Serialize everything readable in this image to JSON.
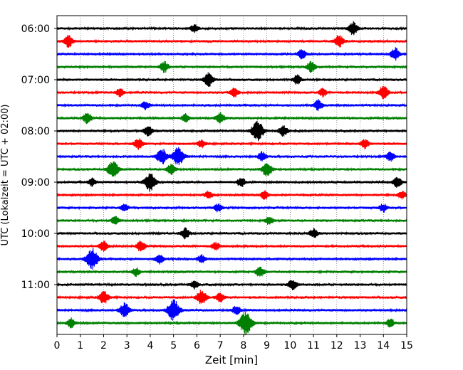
{
  "chart_data": {
    "type": "line",
    "title": "",
    "xlabel": "Zeit  [min]",
    "ylabel": "UTC (Lokalzeit = UTC + 02:00)",
    "xlim": [
      0,
      15
    ],
    "x_ticks": [
      0,
      1,
      2,
      3,
      4,
      5,
      6,
      7,
      8,
      9,
      10,
      11,
      12,
      13,
      14,
      15
    ],
    "y_tick_labels": [
      "06:00",
      "07:00",
      "08:00",
      "09:00",
      "10:00",
      "11:00"
    ],
    "grid": "vertical dotted lines at each minute",
    "trace_interval_minutes": 15,
    "trace_colors": [
      "#000000",
      "#ff0000",
      "#0000ff",
      "#008000"
    ],
    "traces": [
      {
        "start": "06:00",
        "color": "#000000",
        "events": [
          [
            5.9,
            0.6
          ],
          [
            12.7,
            1.0
          ]
        ]
      },
      {
        "start": "06:15",
        "color": "#ff0000",
        "events": [
          [
            0.5,
            0.9
          ],
          [
            12.1,
            0.9
          ]
        ]
      },
      {
        "start": "06:30",
        "color": "#0000ff",
        "events": [
          [
            10.5,
            0.7
          ],
          [
            14.5,
            0.9
          ]
        ]
      },
      {
        "start": "06:45",
        "color": "#008000",
        "events": [
          [
            4.6,
            0.8
          ],
          [
            10.9,
            0.8
          ]
        ]
      },
      {
        "start": "07:00",
        "color": "#000000",
        "events": [
          [
            6.5,
            1.0
          ],
          [
            10.3,
            0.7
          ]
        ]
      },
      {
        "start": "07:15",
        "color": "#ff0000",
        "events": [
          [
            2.7,
            0.6
          ],
          [
            7.6,
            0.7
          ],
          [
            11.4,
            0.6
          ],
          [
            14.0,
            1.0
          ]
        ]
      },
      {
        "start": "07:30",
        "color": "#0000ff",
        "events": [
          [
            3.8,
            0.6
          ],
          [
            11.2,
            0.8
          ]
        ]
      },
      {
        "start": "07:45",
        "color": "#008000",
        "events": [
          [
            1.3,
            0.8
          ],
          [
            5.5,
            0.6
          ],
          [
            7.0,
            0.8
          ]
        ]
      },
      {
        "start": "08:00",
        "color": "#000000",
        "events": [
          [
            3.9,
            0.8
          ],
          [
            8.6,
            1.5
          ],
          [
            9.7,
            0.8
          ]
        ]
      },
      {
        "start": "08:15",
        "color": "#ff0000",
        "events": [
          [
            3.5,
            0.8
          ],
          [
            6.2,
            0.6
          ],
          [
            13.2,
            0.7
          ]
        ]
      },
      {
        "start": "08:30",
        "color": "#0000ff",
        "events": [
          [
            4.5,
            1.2
          ],
          [
            5.2,
            1.4
          ],
          [
            8.8,
            0.7
          ],
          [
            14.3,
            0.7
          ]
        ]
      },
      {
        "start": "08:45",
        "color": "#008000",
        "events": [
          [
            2.4,
            1.3
          ],
          [
            4.9,
            0.8
          ],
          [
            9.0,
            1.1
          ]
        ]
      },
      {
        "start": "09:00",
        "color": "#000000",
        "events": [
          [
            1.5,
            0.6
          ],
          [
            4.0,
            1.4
          ],
          [
            7.9,
            0.7
          ],
          [
            14.6,
            0.8
          ]
        ]
      },
      {
        "start": "09:15",
        "color": "#ff0000",
        "events": [
          [
            6.5,
            0.6
          ],
          [
            8.9,
            0.6
          ],
          [
            14.8,
            0.6
          ]
        ]
      },
      {
        "start": "09:30",
        "color": "#0000ff",
        "events": [
          [
            2.9,
            0.6
          ],
          [
            6.9,
            0.6
          ],
          [
            14.0,
            0.6
          ]
        ]
      },
      {
        "start": "09:45",
        "color": "#008000",
        "events": [
          [
            2.5,
            0.6
          ],
          [
            9.1,
            0.6
          ]
        ]
      },
      {
        "start": "10:00",
        "color": "#000000",
        "events": [
          [
            5.5,
            0.8
          ],
          [
            11.0,
            0.7
          ]
        ]
      },
      {
        "start": "10:15",
        "color": "#ff0000",
        "events": [
          [
            2.0,
            0.8
          ],
          [
            3.6,
            0.8
          ],
          [
            6.8,
            0.6
          ]
        ]
      },
      {
        "start": "10:30",
        "color": "#0000ff",
        "events": [
          [
            1.5,
            1.6
          ],
          [
            4.4,
            0.7
          ],
          [
            6.2,
            0.6
          ]
        ]
      },
      {
        "start": "10:45",
        "color": "#008000",
        "events": [
          [
            3.4,
            0.6
          ],
          [
            8.7,
            0.8
          ]
        ]
      },
      {
        "start": "11:00",
        "color": "#000000",
        "events": [
          [
            5.9,
            0.6
          ],
          [
            10.1,
            0.8
          ]
        ]
      },
      {
        "start": "11:15",
        "color": "#ff0000",
        "events": [
          [
            2.0,
            1.0
          ],
          [
            6.2,
            1.1
          ],
          [
            7.0,
            0.7
          ]
        ]
      },
      {
        "start": "11:30",
        "color": "#0000ff",
        "events": [
          [
            2.9,
            1.1
          ],
          [
            5.0,
            1.6
          ],
          [
            7.7,
            0.7
          ]
        ]
      },
      {
        "start": "11:45",
        "color": "#008000",
        "events": [
          [
            0.6,
            0.7
          ],
          [
            8.1,
            1.8
          ],
          [
            14.3,
            0.6
          ]
        ]
      }
    ]
  }
}
